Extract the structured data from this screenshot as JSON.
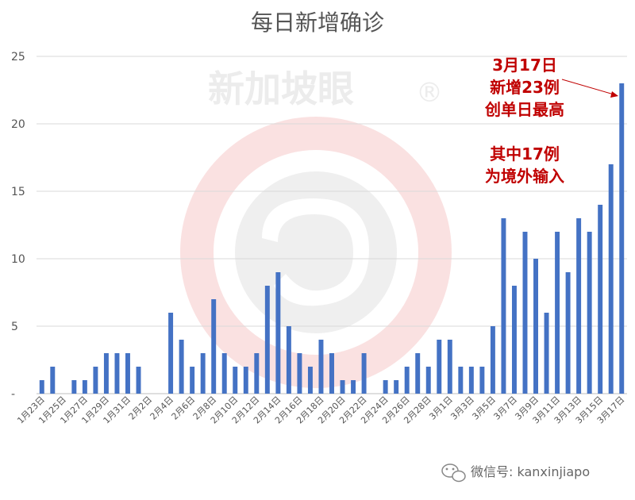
{
  "chart_data": {
    "type": "bar",
    "title": "每日新增确诊",
    "ylim": [
      0,
      25
    ],
    "yticks": [
      "-",
      "5",
      "10",
      "15",
      "20",
      "25"
    ],
    "grid": true,
    "bar_color": "#4472c4",
    "categories": [
      "1月23日",
      "1月24日",
      "1月25日",
      "1月26日",
      "1月27日",
      "1月28日",
      "1月29日",
      "1月30日",
      "1月31日",
      "2月1日",
      "2月2日",
      "2月3日",
      "2月4日",
      "2月5日",
      "2月6日",
      "2月7日",
      "2月8日",
      "2月9日",
      "2月10日",
      "2月11日",
      "2月12日",
      "2月13日",
      "2月14日",
      "2月15日",
      "2月16日",
      "2月17日",
      "2月18日",
      "2月19日",
      "2月20日",
      "2月21日",
      "2月22日",
      "2月23日",
      "2月24日",
      "2月25日",
      "2月26日",
      "2月27日",
      "2月28日",
      "2月29日",
      "3月1日",
      "3月2日",
      "3月3日",
      "3月4日",
      "3月5日",
      "3月6日",
      "3月7日",
      "3月8日",
      "3月9日",
      "3月10日",
      "3月11日",
      "3月12日",
      "3月13日",
      "3月14日",
      "3月15日",
      "3月16日",
      "3月17日"
    ],
    "xtick_labels": [
      "1月23日",
      "1月25日",
      "1月27日",
      "1月29日",
      "1月31日",
      "2月2日",
      "2月4日",
      "2月6日",
      "2月8日",
      "2月10日",
      "2月12日",
      "2月14日",
      "2月16日",
      "2月18日",
      "2月20日",
      "2月22日",
      "2月24日",
      "2月26日",
      "2月28日",
      "3月1日",
      "3月3日",
      "3月5日",
      "3月7日",
      "3月9日",
      "3月11日",
      "3月13日",
      "3月15日",
      "3月17日"
    ],
    "values": [
      1,
      2,
      0,
      1,
      1,
      2,
      3,
      3,
      3,
      2,
      0,
      0,
      6,
      4,
      2,
      3,
      7,
      3,
      2,
      2,
      3,
      8,
      9,
      5,
      3,
      2,
      4,
      3,
      1,
      1,
      3,
      0,
      1,
      1,
      2,
      3,
      2,
      4,
      4,
      2,
      2,
      2,
      5,
      13,
      8,
      12,
      10,
      6,
      12,
      9,
      13,
      12,
      14,
      17,
      23
    ],
    "annotation": {
      "lines": [
        "3月17日",
        "新增23例",
        "创单日最高",
        "",
        "其中17例",
        "为境外输入"
      ],
      "color": "#c00000",
      "target_category": "3月17日"
    }
  },
  "watermark": {
    "text": "新加坡眼",
    "registered_mark": "®"
  },
  "credit": {
    "icon": "wechat-icon",
    "text": "微信号: kanxinjiapo"
  }
}
